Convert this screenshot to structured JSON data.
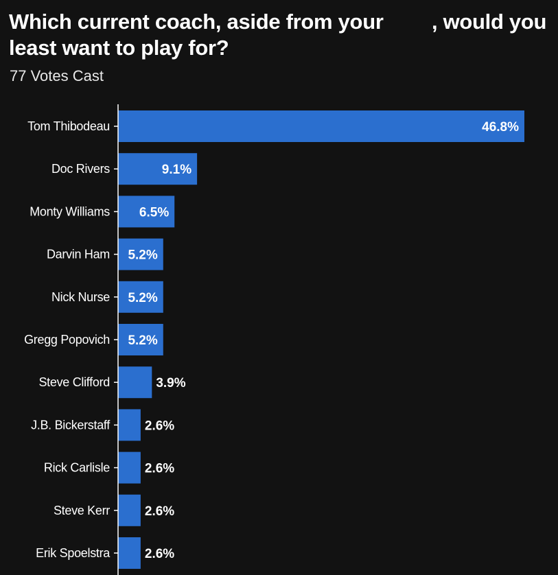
{
  "header": {
    "title_part1": "Which current coach, aside from your",
    "title_part2": ", would you least want to play for?",
    "subtitle": "77 Votes Cast"
  },
  "colors": {
    "background": "#121212",
    "bar": "#2b6fcf",
    "text": "#ffffff"
  },
  "chart_data": {
    "type": "bar",
    "orientation": "horizontal",
    "title": "Which current coach, aside from your , would you least want to play for?",
    "subtitle": "77 Votes Cast",
    "categories": [
      "Tom Thibodeau",
      "Doc Rivers",
      "Monty Williams",
      "Darvin Ham",
      "Nick Nurse",
      "Gregg Popovich",
      "Steve Clifford",
      "J.B. Bickerstaff",
      "Rick Carlisle",
      "Steve Kerr",
      "Erik Spoelstra"
    ],
    "values": [
      46.8,
      9.1,
      6.5,
      5.2,
      5.2,
      5.2,
      3.9,
      2.6,
      2.6,
      2.6,
      2.6
    ],
    "value_labels": [
      "46.8%",
      "9.1%",
      "6.5%",
      "5.2%",
      "5.2%",
      "5.2%",
      "3.9%",
      "2.6%",
      "2.6%",
      "2.6%",
      "2.6%"
    ],
    "xlim": [
      0,
      46.8
    ],
    "grid": false,
    "legend": "none"
  }
}
